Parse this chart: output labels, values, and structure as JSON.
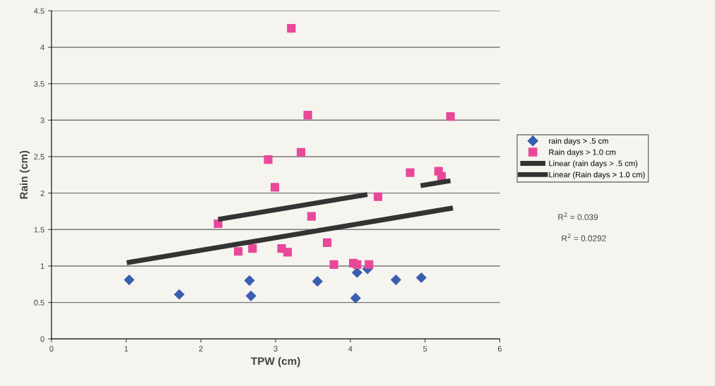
{
  "chart_data": {
    "type": "scatter",
    "xlabel": "TPW (cm)",
    "ylabel": "Rain (cm)",
    "xlim": [
      0,
      6
    ],
    "xticks": [
      0,
      1,
      2,
      3,
      4,
      5,
      6
    ],
    "ylim": [
      0,
      4.5
    ],
    "yticks": [
      0,
      0.5,
      1,
      1.5,
      2,
      2.5,
      3,
      3.5,
      4,
      4.5
    ],
    "grid": "y",
    "legend": "right",
    "series": [
      {
        "name": "rain days > .5 cm",
        "type": "scatter",
        "marker": "diamond",
        "color": "#3a5fb0",
        "x": [
          1.04,
          1.71,
          2.65,
          2.67,
          3.56,
          4.07,
          4.09,
          4.23,
          4.61,
          4.95
        ],
        "values": [
          0.81,
          0.61,
          0.8,
          0.59,
          0.79,
          0.56,
          0.91,
          0.96,
          0.81,
          0.84
        ]
      },
      {
        "name": "Rain days > 1.0 cm",
        "type": "scatter",
        "marker": "square",
        "color": "#e8489a",
        "x": [
          2.23,
          2.5,
          2.69,
          2.9,
          2.99,
          3.08,
          3.16,
          3.21,
          3.34,
          3.43,
          3.48,
          3.69,
          3.78,
          4.04,
          4.09,
          4.25,
          4.37,
          4.8,
          5.18,
          5.22,
          5.34
        ],
        "values": [
          1.58,
          1.2,
          1.24,
          2.46,
          2.08,
          1.24,
          1.19,
          4.26,
          2.56,
          3.07,
          1.68,
          1.32,
          1.02,
          1.04,
          1.02,
          1.02,
          1.95,
          2.28,
          2.3,
          2.23,
          3.05
        ]
      },
      {
        "name": "Linear (rain days > .5 cm)",
        "type": "line",
        "marker": "none",
        "line_style": "dashed",
        "color": "#333333",
        "x": [
          2.23,
          5.34
        ],
        "values": [
          1.64,
          2.17
        ]
      },
      {
        "name": "Linear (Rain days > 1.0 cm)",
        "type": "line",
        "marker": "none",
        "line_style": "solid",
        "color": "#333333",
        "x": [
          1.04,
          5.34
        ],
        "values": [
          1.05,
          1.79
        ]
      }
    ],
    "annotations": [
      "R$^{2}$ = 0.039",
      "R$^{2}$ = 0.0292"
    ]
  }
}
